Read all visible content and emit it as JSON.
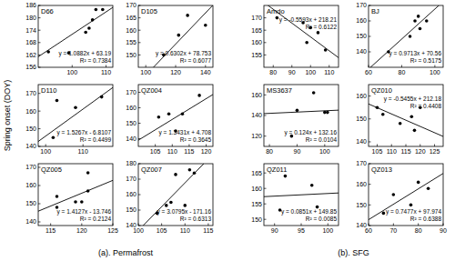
{
  "figure": {
    "ylabel": "Spring onset (DOY)",
    "groups": [
      "(a). Permafrost",
      "(b). SFG"
    ]
  },
  "chart_data": [
    {
      "type": "scatter",
      "title": "D66",
      "x": [
        93,
        99,
        104,
        105,
        106,
        107,
        109
      ],
      "values": [
        163.5,
        163,
        173,
        175,
        179,
        184,
        184
      ],
      "xlim": [
        90,
        112
      ],
      "ylim": [
        156,
        186
      ],
      "xticks": [
        100,
        110
      ],
      "yticks": [
        156,
        162,
        168,
        174,
        180,
        186
      ],
      "trend": {
        "slope": 1.0882,
        "intercept": 63.19
      },
      "annotations": [
        "y = 1.0882x + 63.19",
        "R² = 0.7384"
      ],
      "color": "#000000",
      "marker": "circle"
    },
    {
      "type": "scatter",
      "title": "D105",
      "x": [
        112,
        122,
        128,
        140
      ],
      "values": [
        150,
        158,
        166,
        162
      ],
      "xlim": [
        95,
        145
      ],
      "ylim": [
        145,
        170
      ],
      "xticks": [
        100,
        120,
        140
      ],
      "yticks": [
        150,
        155,
        160,
        165,
        170
      ],
      "trend": {
        "slope": 0.6302,
        "intercept": 78.753
      },
      "annotations": [
        "y = 0.6302x + 78.753",
        "R² = 0.6077"
      ],
      "color": "#000000",
      "marker": "circle"
    },
    {
      "type": "scatter",
      "title": "D110",
      "x": [
        102,
        103,
        108,
        115
      ],
      "values": [
        145,
        166,
        162,
        168
      ],
      "xlim": [
        98,
        118
      ],
      "ylim": [
        140,
        175
      ],
      "xticks": [
        100,
        110
      ],
      "yticks": [
        140,
        150,
        160,
        170
      ],
      "trend": {
        "slope": 1.5267,
        "intercept": -6.8107
      },
      "annotations": [
        "y = 1.5267x - 6.8107",
        "R² = 0.4499"
      ],
      "color": "#000000",
      "marker": "circle"
    },
    {
      "type": "scatter",
      "title": "QZ004",
      "x": [
        106,
        109,
        111,
        113,
        118
      ],
      "values": [
        154,
        156,
        145,
        156,
        168
      ],
      "xlim": [
        100,
        122
      ],
      "ylim": [
        135,
        175
      ],
      "xticks": [
        105,
        110,
        115,
        120
      ],
      "yticks": [
        140,
        150,
        160,
        170
      ],
      "trend": {
        "slope": 1.3431,
        "intercept": 4.708
      },
      "annotations": [
        "y = 1.3431x + 4.708",
        "R² = 0.3645"
      ],
      "color": "#000000",
      "marker": "circle"
    },
    {
      "type": "scatter",
      "title": "QZ005",
      "x": [
        116,
        116,
        119,
        120,
        121,
        121
      ],
      "values": [
        148,
        154,
        151,
        151,
        167,
        157
      ],
      "xlim": [
        113,
        125
      ],
      "ylim": [
        138,
        172
      ],
      "xticks": [
        115,
        120,
        125
      ],
      "yticks": [
        140,
        150,
        160,
        170
      ],
      "trend": {
        "slope": 1.4127,
        "intercept": -13.746
      },
      "annotations": [
        "y = 1.4127x - 13.746",
        "R² = 0.2124"
      ],
      "color": "#000000",
      "marker": "circle"
    },
    {
      "type": "scatter",
      "title": "QZ007",
      "x": [
        104,
        106,
        107,
        108,
        110,
        111,
        112
      ],
      "values": [
        148,
        153,
        155,
        173,
        153,
        176,
        174
      ],
      "xlim": [
        100,
        116
      ],
      "ylim": [
        140,
        180
      ],
      "xticks": [
        100,
        105,
        110,
        115
      ],
      "yticks": [
        140,
        150,
        160,
        170,
        180
      ],
      "trend": {
        "slope": 3.0795,
        "intercept": -171.16
      },
      "annotations": [
        "y = 3.0795x - 171.16",
        "R² = 0.6313"
      ],
      "color": "#000000",
      "marker": "circle"
    },
    {
      "type": "scatter",
      "title": "Amdo",
      "x": [
        82,
        96,
        98,
        100,
        104,
        108
      ],
      "values": [
        170,
        168,
        160,
        166,
        164,
        157
      ],
      "xlim": [
        75,
        115
      ],
      "ylim": [
        150,
        175
      ],
      "xticks": [
        80,
        90,
        100,
        110
      ],
      "yticks": [
        155,
        160,
        165,
        170
      ],
      "trend": {
        "slope": -0.5593,
        "intercept": 218.21
      },
      "annotations": [
        "y = -0.5593x + 218.21",
        "R² = 0.6122"
      ],
      "color": "#000000",
      "marker": "circle"
    },
    {
      "type": "scatter",
      "title": "BJ",
      "x": [
        72,
        85,
        88,
        90,
        91,
        95
      ],
      "values": [
        140,
        150,
        160,
        163,
        155,
        160
      ],
      "xlim": [
        60,
        105
      ],
      "ylim": [
        130,
        170
      ],
      "xticks": [
        60,
        80,
        100
      ],
      "yticks": [
        140,
        150,
        160,
        170
      ],
      "trend": {
        "slope": 0.9713,
        "intercept": 70.56
      },
      "annotations": [
        "y = 0.9713x + 70.56",
        "R² = 0.5175"
      ],
      "color": "#000000",
      "marker": "circle"
    },
    {
      "type": "scatter",
      "title": "MS3637",
      "x": [
        88,
        90,
        96,
        100,
        101
      ],
      "values": [
        120,
        145,
        162,
        143,
        143
      ],
      "xlim": [
        78,
        105
      ],
      "ylim": [
        110,
        170
      ],
      "xticks": [
        80,
        90,
        100
      ],
      "yticks": [
        120,
        140,
        160
      ],
      "trend": {
        "slope": 0.124,
        "intercept": 132.16
      },
      "annotations": [
        "y = 0.124x + 132.16",
        "R² = 0.0104"
      ],
      "color": "#000000",
      "marker": "circle"
    },
    {
      "type": "scatter",
      "title": "QZ010",
      "x": [
        105,
        107,
        113,
        117,
        118,
        120
      ],
      "values": [
        155,
        152,
        148,
        151,
        145,
        155
      ],
      "xlim": [
        102,
        128
      ],
      "ylim": [
        138,
        165
      ],
      "xticks": [
        105,
        110,
        115,
        120,
        125
      ],
      "yticks": [
        140,
        150,
        160
      ],
      "trend": {
        "slope": -0.5455,
        "intercept": 212.18
      },
      "annotations": [
        "y = -0.5455x + 212.18",
        "R² = 0.4408"
      ],
      "color": "#000000",
      "marker": "circle"
    },
    {
      "type": "scatter",
      "title": "QZ011",
      "x": [
        91,
        92,
        97,
        98
      ],
      "values": [
        153,
        164,
        161,
        154
      ],
      "xlim": [
        88,
        102
      ],
      "ylim": [
        148,
        168
      ],
      "xticks": [
        90,
        95,
        100
      ],
      "yticks": [
        150,
        155,
        160,
        165
      ],
      "trend": {
        "slope": 0.0851,
        "intercept": 149.85
      },
      "annotations": [
        "y = 0.0851x + 149.85",
        "R² = 0.0085"
      ],
      "color": "#000000",
      "marker": "circle"
    },
    {
      "type": "scatter",
      "title": "QZ013",
      "x": [
        66,
        70,
        77,
        80,
        84
      ],
      "values": [
        146,
        155,
        150,
        161,
        158
      ],
      "xlim": [
        60,
        90
      ],
      "ylim": [
        140,
        170
      ],
      "xticks": [
        60,
        70,
        80,
        90
      ],
      "yticks": [
        140,
        150,
        160,
        170
      ],
      "trend": {
        "slope": 0.7477,
        "intercept": 97.974
      },
      "annotations": [
        "y = 0.7477x + 97.974",
        "R² = 0.6388"
      ],
      "color": "#000000",
      "marker": "circle"
    }
  ]
}
